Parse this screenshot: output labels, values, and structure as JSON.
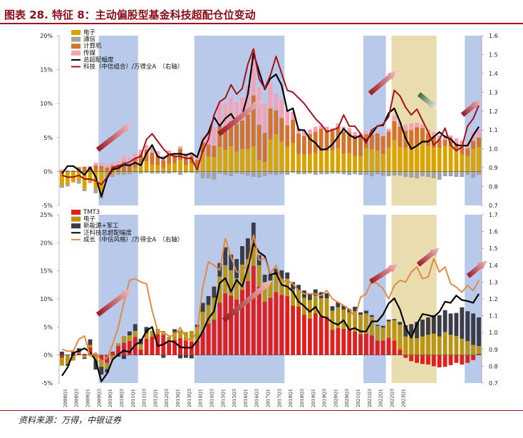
{
  "title": "图表 28. 特征 8：主动偏股型基金科技超配仓位变动",
  "source": "资料来源：万得，中银证券",
  "chart_data": [
    {
      "type": "bar",
      "stacked": true,
      "y_left_ticks": [
        "20%",
        "15%",
        "10%",
        "5%",
        "0%",
        "-5%"
      ],
      "y_left_range": [
        -5,
        20
      ],
      "y_right_ticks": [
        "1.6",
        "1.5",
        "1.4",
        "1.3",
        "1.2",
        "1.1",
        "1.0",
        "0.9",
        "0.8",
        "0.7"
      ],
      "y_right_range": [
        0.7,
        1.6
      ],
      "shaded_periods": [
        [
          7,
          14,
          "#b9c9ea"
        ],
        [
          24,
          40,
          "#b9c9ea"
        ],
        [
          54,
          58,
          "#b9c9ea"
        ],
        [
          59,
          67,
          "#e9dcae"
        ],
        [
          72,
          75,
          "#b9c9ea"
        ]
      ],
      "series": [
        {
          "name": "电子",
          "color": "#d9a400",
          "values": [
            -2.0,
            -1.9,
            -1.6,
            -1.3,
            -2.5,
            -1.6,
            -2.5,
            -3.2,
            -0.4,
            -0.4,
            -0.2,
            -0.2,
            -0.2,
            0.5,
            1.0,
            1.5,
            1.0,
            0.9,
            0.5,
            1.1,
            1.2,
            1.7,
            0.9,
            1.2,
            0.8,
            2.8,
            2.2,
            2.1,
            3.6,
            3.2,
            3.7,
            2.9,
            3.3,
            3.3,
            3.7,
            1.7,
            1.4,
            4.7,
            5.5,
            4.4,
            3.6,
            4.2,
            2.6,
            2.5,
            2.6,
            2.7,
            3.0,
            3.0,
            3.1,
            3.4,
            2.6,
            2.7,
            2.3,
            2.3,
            3.4,
            3.3,
            3.1,
            2.6,
            3.5,
            4.6,
            3.6,
            3.5,
            3.4,
            3.9,
            4.4,
            3.7,
            3.5,
            3.5,
            3.7,
            3.7,
            3.0,
            2.5,
            2.3,
            3.3,
            3.6
          ]
        },
        {
          "name": "通信",
          "color": "#a3a3a3",
          "values": [
            -0.4,
            -0.3,
            0.0,
            -0.5,
            -0.4,
            -0.1,
            -0.7,
            -0.8,
            -0.4,
            -0.4,
            -0.3,
            -0.3,
            -0.2,
            -0.2,
            -0.3,
            -0.2,
            -0.3,
            -0.3,
            -0.3,
            -0.3,
            -0.2,
            -0.5,
            -0.2,
            -0.2,
            -0.3,
            -1.0,
            -1.0,
            -1.2,
            -0.3,
            -0.5,
            -0.7,
            -0.3,
            -0.4,
            -0.6,
            -0.8,
            -0.9,
            -0.7,
            -0.4,
            -0.5,
            -0.4,
            -0.5,
            -0.2,
            -0.4,
            -0.4,
            -0.3,
            -0.5,
            -0.4,
            -0.4,
            -0.3,
            -0.3,
            -0.4,
            -0.5,
            -0.4,
            -0.5,
            -0.5,
            -0.7,
            -0.4,
            -0.6,
            -0.7,
            -0.6,
            -0.6,
            -0.8,
            -0.9,
            -1.0,
            -0.7,
            -0.8,
            -1.0,
            -1.2,
            -0.7,
            -0.7,
            -0.8,
            -0.8,
            -0.5,
            -0.9,
            -0.5
          ]
        },
        {
          "name": "计算机",
          "color": "#d2742e",
          "values": [
            0.1,
            0.1,
            0.1,
            0.6,
            0.7,
            0.7,
            0.9,
            0.8,
            0.6,
            0.9,
            1.0,
            1.4,
            1.1,
            1.4,
            1.5,
            1.7,
            1.8,
            1.4,
            1.2,
            1.3,
            1.1,
            1.6,
            1.3,
            1.1,
            0.9,
            1.5,
            1.8,
            1.7,
            3.1,
            3.3,
            3.7,
            4.1,
            4.2,
            5.1,
            7.5,
            5.2,
            4.3,
            4.6,
            3.5,
            3.5,
            3.2,
            3.4,
            3.0,
            2.7,
            2.9,
            3.2,
            3.3,
            3.2,
            2.9,
            3.2,
            3.3,
            3.1,
            3.0,
            2.9,
            2.1,
            2.1,
            2.5,
            2.6,
            2.4,
            2.8,
            3.0,
            2.5,
            2.7,
            2.6,
            2.0,
            1.9,
            1.6,
            1.2,
            1.0,
            0.9,
            1.2,
            1.2,
            1.1,
            1.2,
            1.4
          ]
        },
        {
          "name": "传媒",
          "color": "#f4a3b6",
          "values": [
            0.2,
            0.1,
            0.1,
            0.1,
            0.0,
            0.1,
            0.4,
            0.5,
            0.5,
            0.4,
            0.5,
            0.9,
            0.9,
            0.8,
            0.7,
            0.7,
            0.8,
            0.7,
            0.6,
            0.7,
            0.3,
            0.4,
            0.5,
            0.5,
            0.5,
            1.0,
            1.8,
            2.7,
            3.6,
            3.5,
            3.5,
            3.2,
            3.4,
            4.2,
            6.7,
            5.5,
            4.3,
            3.7,
            2.5,
            2.7,
            2.3,
            1.2,
            0.8,
            0.9,
            0.7,
            0.7,
            0.5,
            0.4,
            0.4,
            0.5,
            0.7,
            0.6,
            0.5,
            0.4,
            0.4,
            0.3,
            0.2,
            0.2,
            0.4,
            0.8,
            0.6,
            0.9,
            1.0,
            0.7,
            0.5,
            0.6,
            0.7,
            0.6,
            0.7,
            0.7,
            0.7,
            0.9,
            0.9,
            1.4,
            1.2
          ]
        }
      ],
      "lines": [
        {
          "name": "总超配幅度",
          "axis": "left",
          "color": "#000000",
          "values": [
            -0.3,
            0.8,
            0.8,
            0.2,
            -0.5,
            0.6,
            -0.8,
            -3.7,
            -1.0,
            0.3,
            0.5,
            1.0,
            0.9,
            1.3,
            0.9,
            2.7,
            3.9,
            2.2,
            1.9,
            2.5,
            2.6,
            2.6,
            2.4,
            2.7,
            2.1,
            4.6,
            5.7,
            8.0,
            6.7,
            7.8,
            8.5,
            7.2,
            8.3,
            11.4,
            17.4,
            14.7,
            12.1,
            13.7,
            14.3,
            12.7,
            8.9,
            9.3,
            6.1,
            6.1,
            4.8,
            4.2,
            3.2,
            3.3,
            4.0,
            5.1,
            6.3,
            5.4,
            4.9,
            5.3,
            4.5,
            5.6,
            6.7,
            6.8,
            8.6,
            9.3,
            7.3,
            4.9,
            3.3,
            3.8,
            4.4,
            4.4,
            5.1,
            5.8,
            5.1,
            4.8,
            3.9,
            3.8,
            3.8,
            5.3,
            6.6
          ]
        },
        {
          "name": "科技（中信组合）/万得全A　（右轴）",
          "axis": "right",
          "color": "#a80f18",
          "values": [
            0.86,
            0.85,
            0.85,
            0.86,
            0.84,
            0.84,
            0.83,
            0.81,
            0.85,
            0.9,
            0.91,
            0.92,
            0.93,
            0.95,
            0.96,
            1.05,
            1.08,
            1.04,
            1.0,
            0.97,
            0.96,
            0.96,
            0.95,
            0.95,
            0.89,
            0.99,
            1.05,
            1.18,
            1.25,
            1.27,
            1.34,
            1.29,
            1.32,
            1.45,
            1.53,
            1.37,
            1.32,
            1.39,
            1.49,
            1.4,
            1.31,
            1.3,
            1.27,
            1.24,
            1.2,
            1.16,
            1.13,
            1.09,
            1.1,
            1.11,
            1.18,
            1.12,
            1.12,
            1.08,
            1.03,
            1.1,
            1.12,
            1.13,
            1.17,
            1.31,
            1.28,
            1.22,
            1.18,
            1.21,
            1.15,
            1.09,
            1.02,
            1.05,
            1.11,
            1.02,
            0.99,
            1.01,
            1.12,
            1.16,
            1.23
          ]
        }
      ]
    },
    {
      "type": "bar",
      "stacked": true,
      "y_left_ticks": [
        "25%",
        "20%",
        "15%",
        "10%",
        "5%",
        "0%",
        "-5%"
      ],
      "y_left_range": [
        -5,
        25
      ],
      "y_right_ticks": [
        "1.7",
        "1.6",
        "1.5",
        "1.4",
        "1.3",
        "1.2",
        "1.1",
        "1.0",
        "0.9",
        "0.8",
        "0.7"
      ],
      "y_right_range": [
        0.7,
        1.7
      ],
      "shaded_periods": [
        [
          7,
          14,
          "#b9c9ea"
        ],
        [
          24,
          40,
          "#b9c9ea"
        ],
        [
          54,
          58,
          "#b9c9ea"
        ],
        [
          59,
          67,
          "#e9dcae"
        ],
        [
          72,
          75,
          "#b9c9ea"
        ]
      ],
      "x_labels": [
        "2008Q1",
        "2008Q3",
        "2009Q1",
        "2009Q3",
        "2010Q1",
        "2010Q3",
        "2011Q1",
        "2011Q3",
        "2012Q1",
        "2012Q3",
        "2013Q1",
        "2013Q3",
        "2014Q1",
        "2014Q3",
        "2015Q1",
        "2015Q3",
        "2016Q1",
        "2016Q3",
        "2017Q1",
        "2017Q3",
        "2018Q1",
        "2018Q3",
        "2019Q1",
        "2019Q3",
        "2020Q1",
        "2020Q3",
        "2021Q1",
        "2021Q3",
        "2022Q1",
        "2022Q3",
        "2023Q1"
      ],
      "series": [
        {
          "name": "TMT3",
          "color": "#e01f1f",
          "values": [
            -0.5,
            0.1,
            -0.2,
            0.3,
            0.2,
            1.4,
            0.1,
            -1.1,
            -1.4,
            0.5,
            1.6,
            2.2,
            2.5,
            3.2,
            1.0,
            2.9,
            3.3,
            3.7,
            3.6,
            2.2,
            2.7,
            3.0,
            2.6,
            2.4,
            2.5,
            4.2,
            5.6,
            6.3,
            9.3,
            11.0,
            10.6,
            9.9,
            11.6,
            13.2,
            15.9,
            12.2,
            9.5,
            10.2,
            11.2,
            10.7,
            10.5,
            8.8,
            8.6,
            7.2,
            6.5,
            7.5,
            6.8,
            6.8,
            4.5,
            4.8,
            4.7,
            4.5,
            4.2,
            3.7,
            3.8,
            3.5,
            2.6,
            2.6,
            3.1,
            2.6,
            1.0,
            -0.5,
            -1.1,
            -1.4,
            -1.6,
            -1.7,
            -2.0,
            -2.2,
            -2.1,
            -1.8,
            -1.4,
            -1.7,
            -1.4,
            -0.9,
            0.2
          ]
        },
        {
          "name": "电子",
          "color": "#b99516",
          "values": [
            -1.4,
            -1.6,
            -0.8,
            0.2,
            -0.5,
            0.4,
            -1.0,
            -1.0,
            -1.1,
            -0.8,
            0.5,
            1.2,
            1.0,
            1.1,
            0.9,
            1.0,
            1.0,
            0.8,
            0.7,
            0.9,
            1.4,
            1.4,
            1.5,
            1.9,
            2.5,
            3.5,
            3.3,
            3.9,
            4.7,
            5.0,
            4.5,
            3.8,
            4.5,
            3.9,
            4.2,
            3.8,
            3.5,
            3.1,
            3.1,
            2.9,
            3.1,
            2.9,
            2.9,
            3.0,
            3.3,
            3.1,
            3.3,
            3.3,
            3.4,
            3.7,
            3.4,
            3.1,
            3.6,
            3.5,
            3.6,
            3.3,
            2.6,
            2.3,
            2.9,
            3.6,
            4.4,
            3.3,
            3.6,
            3.0,
            3.3,
            3.6,
            3.8,
            3.3,
            4.1,
            3.6,
            3.4,
            2.9,
            2.5,
            1.8,
            1.4
          ]
        },
        {
          "name": "新能源+军工",
          "color": "#3a3d48",
          "values": [
            0.6,
            -0.3,
            0.6,
            0.7,
            -0.2,
            1.0,
            -1.6,
            -1.4,
            -0.6,
            0.1,
            -0.3,
            -0.7,
            0.7,
            1.2,
            1.0,
            1.1,
            0.0,
            0.1,
            -0.5,
            0.1,
            0.5,
            -0.6,
            -0.5,
            -0.6,
            0.4,
            1.6,
            1.6,
            2.0,
            2.4,
            3.2,
            2.8,
            3.4,
            3.3,
            3.7,
            3.5,
            1.8,
            1.3,
            1.1,
            1.1,
            1.5,
            1.1,
            1.3,
            1.0,
            1.3,
            1.1,
            1.1,
            1.1,
            0.9,
            0.8,
            0.9,
            0.7,
            0.6,
            0.8,
            0.4,
            0.5,
            0.3,
            0.2,
            0.3,
            0.3,
            0.2,
            0.5,
            2.0,
            1.9,
            2.9,
            3.0,
            3.1,
            3.3,
            3.8,
            3.9,
            3.8,
            4.1,
            5.6,
            5.3,
            5.6,
            5.1
          ]
        }
      ],
      "lines": [
        {
          "name": "泛科技总超配幅度",
          "axis": "left",
          "color": "#000000",
          "values": [
            -3.7,
            -2.2,
            0.4,
            0.7,
            1.2,
            0.5,
            -1.0,
            -4.7,
            -3.3,
            -0.8,
            0.1,
            0.8,
            0.5,
            1.8,
            2.4,
            4.3,
            5.0,
            1.6,
            1.9,
            2.5,
            2.3,
            1.4,
            1.3,
            1.3,
            2.5,
            4.2,
            6.5,
            7.8,
            12.8,
            13.7,
            11.3,
            13.4,
            12.2,
            15.5,
            19.9,
            18.3,
            17.6,
            14.3,
            14.6,
            12.5,
            12.2,
            11.3,
            9.5,
            8.7,
            7.7,
            8.6,
            6.9,
            6.6,
            5.8,
            5.4,
            6.2,
            4.5,
            4.8,
            4.2,
            4.2,
            6.0,
            6.0,
            7.2,
            9.2,
            10.1,
            8.1,
            4.9,
            3.1,
            5.5,
            7.3,
            7.1,
            6.8,
            7.7,
            9.5,
            9.3,
            10.6,
            9.8,
            9.6,
            9.3,
            10.9
          ]
        },
        {
          "name": "成长（中信风格）/万得全A　（右轴）",
          "axis": "right",
          "color": "#e18b45",
          "values": [
            0.9,
            0.89,
            0.89,
            0.96,
            0.98,
            0.86,
            0.88,
            0.83,
            0.85,
            0.93,
            1.03,
            1.18,
            1.31,
            1.32,
            1.3,
            1.29,
            1.13,
            1.01,
            1.0,
            0.98,
            0.98,
            1.03,
            0.97,
            0.95,
            1.01,
            1.27,
            1.42,
            1.4,
            1.37,
            1.56,
            1.45,
            1.36,
            1.36,
            1.41,
            1.58,
            1.43,
            1.44,
            1.35,
            1.4,
            1.3,
            1.31,
            1.29,
            1.25,
            1.23,
            1.23,
            1.23,
            1.22,
            1.25,
            1.2,
            1.18,
            1.16,
            1.14,
            1.09,
            1.21,
            1.23,
            1.31,
            1.29,
            1.26,
            1.2,
            1.28,
            1.31,
            1.3,
            1.36,
            1.39,
            1.32,
            1.33,
            1.44,
            1.36,
            1.39,
            1.29,
            1.27,
            1.24,
            1.28,
            1.25,
            1.31
          ]
        }
      ]
    }
  ]
}
